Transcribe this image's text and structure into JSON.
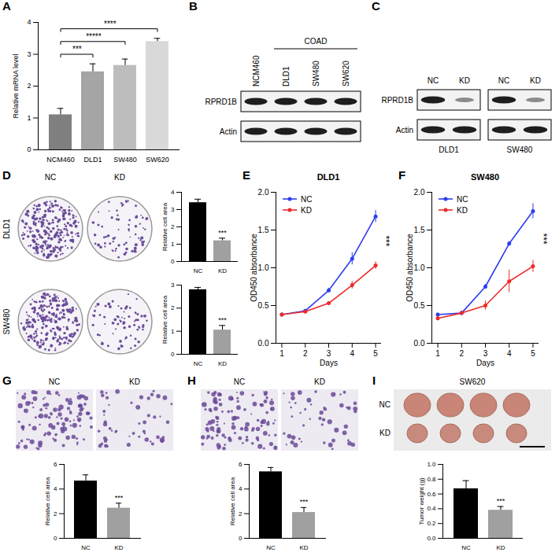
{
  "chart_data": [
    {
      "panel": "A",
      "type": "bar",
      "categories": [
        "NCM460",
        "DLD1",
        "SW480",
        "SW620"
      ],
      "values": [
        1.1,
        2.45,
        2.65,
        3.4
      ],
      "errors": [
        0.2,
        0.25,
        0.2,
        0.1
      ],
      "colors": [
        "#7f7f7f",
        "#a5a5a5",
        "#bdbdbd",
        "#d9d9d9"
      ],
      "ylabel": "Relative mRNA level",
      "ylim": [
        0,
        4
      ],
      "yticks": [
        0,
        1,
        2,
        3,
        4
      ],
      "annotations": [
        {
          "from": "NCM460",
          "to": "DLD1",
          "text": "***"
        },
        {
          "from": "NCM460",
          "to": "SW480",
          "text": "*****"
        },
        {
          "from": "NCM460",
          "to": "SW620",
          "text": "****"
        }
      ]
    },
    {
      "type": "bar",
      "categories": [
        "NC",
        "KD"
      ],
      "values": [
        3.4,
        1.2
      ],
      "errors": [
        0.2,
        0.15
      ],
      "colors": [
        "#000000",
        "#a0a0a0"
      ],
      "ylabel": "Relative cell area",
      "ylim": [
        0,
        4
      ],
      "yticks": [
        0,
        1,
        2,
        3,
        4
      ],
      "annotations": [
        {
          "category": "KD",
          "text": "***"
        }
      ]
    },
    {
      "type": "bar",
      "categories": [
        "NC",
        "KD"
      ],
      "values": [
        2.8,
        1.05
      ],
      "errors": [
        0.1,
        0.2
      ],
      "colors": [
        "#000000",
        "#a0a0a0"
      ],
      "ylabel": "Relative cell area",
      "ylim": [
        0,
        3
      ],
      "yticks": [
        0,
        1,
        2,
        3
      ],
      "annotations": [
        {
          "category": "KD",
          "text": "***"
        }
      ]
    },
    {
      "panel": "E",
      "type": "line",
      "title": "DLD1",
      "x": [
        1,
        2,
        3,
        4,
        5
      ],
      "series": [
        {
          "name": "NC",
          "color": "#2e3cf0",
          "values": [
            0.38,
            0.43,
            0.7,
            1.12,
            1.68
          ],
          "errors": [
            0.02,
            0.02,
            0.03,
            0.08,
            0.08
          ]
        },
        {
          "name": "KD",
          "color": "#ee2a2a",
          "values": [
            0.38,
            0.42,
            0.53,
            0.77,
            1.03
          ],
          "errors": [
            0.02,
            0.02,
            0.02,
            0.05,
            0.05
          ]
        }
      ],
      "xlabel": "Days",
      "ylabel": "OD450 absorbance",
      "xlim": [
        0.75,
        5.25
      ],
      "xticks": [
        1,
        2,
        3,
        4,
        5
      ],
      "ylim": [
        0,
        2
      ],
      "yticks": [
        {
          "value": 0,
          "label": "0.0"
        },
        {
          "value": 0.5,
          "label": "0.5"
        },
        {
          "value": 1,
          "label": "1.0"
        },
        {
          "value": 1.5,
          "label": "1.5"
        },
        {
          "value": 2,
          "label": "2.0"
        }
      ],
      "legend": "top-left",
      "marker": "circle",
      "annotations": [
        {
          "x": 5,
          "text": "***"
        }
      ]
    },
    {
      "panel": "F",
      "type": "line",
      "title": "SW480",
      "x": [
        1,
        2,
        3,
        4,
        5
      ],
      "series": [
        {
          "name": "NC",
          "color": "#2e3cf0",
          "values": [
            0.38,
            0.4,
            0.75,
            1.32,
            1.75
          ],
          "errors": [
            0.02,
            0.02,
            0.03,
            0.03,
            0.1
          ]
        },
        {
          "name": "KD",
          "color": "#ee2a2a",
          "values": [
            0.33,
            0.4,
            0.5,
            0.82,
            1.02
          ],
          "errors": [
            0.03,
            0.03,
            0.06,
            0.15,
            0.08
          ]
        }
      ],
      "xlabel": "Days",
      "ylabel": "OD450 absorbance",
      "xlim": [
        0.75,
        5.25
      ],
      "xticks": [
        1,
        2,
        3,
        4,
        5
      ],
      "ylim": [
        0,
        2
      ],
      "yticks": [
        {
          "value": 0,
          "label": "0.0"
        },
        {
          "value": 0.5,
          "label": "0.5"
        },
        {
          "value": 1,
          "label": "1.0"
        },
        {
          "value": 1.5,
          "label": "1.5"
        },
        {
          "value": 2,
          "label": "2.0"
        }
      ],
      "legend": "top-left",
      "marker": "circle",
      "annotations": [
        {
          "x": 5,
          "text": "***"
        }
      ]
    },
    {
      "type": "bar",
      "categories": [
        "NC",
        "KD"
      ],
      "values": [
        4.65,
        2.45
      ],
      "errors": [
        0.5,
        0.4
      ],
      "colors": [
        "#000000",
        "#a0a0a0"
      ],
      "ylabel": "Relative cell area",
      "ylim": [
        0,
        6
      ],
      "yticks": [
        0,
        2,
        4,
        6
      ],
      "annotations": [
        {
          "category": "KD",
          "text": "***"
        }
      ]
    },
    {
      "type": "bar",
      "categories": [
        "NC",
        "KD"
      ],
      "values": [
        5.4,
        2.1
      ],
      "errors": [
        0.35,
        0.4
      ],
      "colors": [
        "#000000",
        "#a0a0a0"
      ],
      "ylabel": "Relative cell area",
      "ylim": [
        0,
        6
      ],
      "yticks": [
        0,
        2,
        4,
        6
      ],
      "annotations": [
        {
          "category": "KD",
          "text": "***"
        }
      ]
    },
    {
      "type": "bar",
      "categories": [
        "NC",
        "KD"
      ],
      "values": [
        0.67,
        0.38
      ],
      "errors": [
        0.11,
        0.05
      ],
      "colors": [
        "#000000",
        "#a0a0a0"
      ],
      "ylabel": "Tumor weight (g)",
      "ylim": [
        0,
        1
      ],
      "yticks": [
        {
          "value": 0,
          "label": "0.0"
        },
        {
          "value": 0.2,
          "label": "0.2"
        },
        {
          "value": 0.4,
          "label": "0.4"
        },
        {
          "value": 0.6,
          "label": "0.6"
        },
        {
          "value": 0.8,
          "label": "0.8"
        },
        {
          "value": 1,
          "label": "1.0"
        }
      ],
      "annotations": [
        {
          "category": "KD",
          "text": "***"
        }
      ]
    }
  ],
  "blots": [
    {
      "panel": "B",
      "group": "COAD",
      "group_columns": [
        "DLD1",
        "SW480",
        "SW620"
      ],
      "columns": [
        "NCM460",
        "DLD1",
        "SW480",
        "SW620"
      ],
      "rows": [
        "RPRD1B",
        "Actin"
      ]
    },
    {
      "panel": "C",
      "columns": [
        "NC",
        "KD",
        "NC",
        "KD"
      ],
      "groups": [
        "DLD1",
        "SW480"
      ],
      "rows": [
        "RPRD1B",
        "Actin"
      ]
    }
  ],
  "images": [
    {
      "panel": "D",
      "columns": [
        "NC",
        "KD"
      ],
      "rows": [
        "DLD1",
        "SW480"
      ]
    },
    {
      "panel": "G",
      "columns": [
        "NC",
        "KD"
      ]
    },
    {
      "panel": "H",
      "columns": [
        "NC",
        "KD"
      ]
    },
    {
      "panel": "I",
      "title": "SW620",
      "rows": [
        "NC",
        "KD"
      ]
    }
  ]
}
